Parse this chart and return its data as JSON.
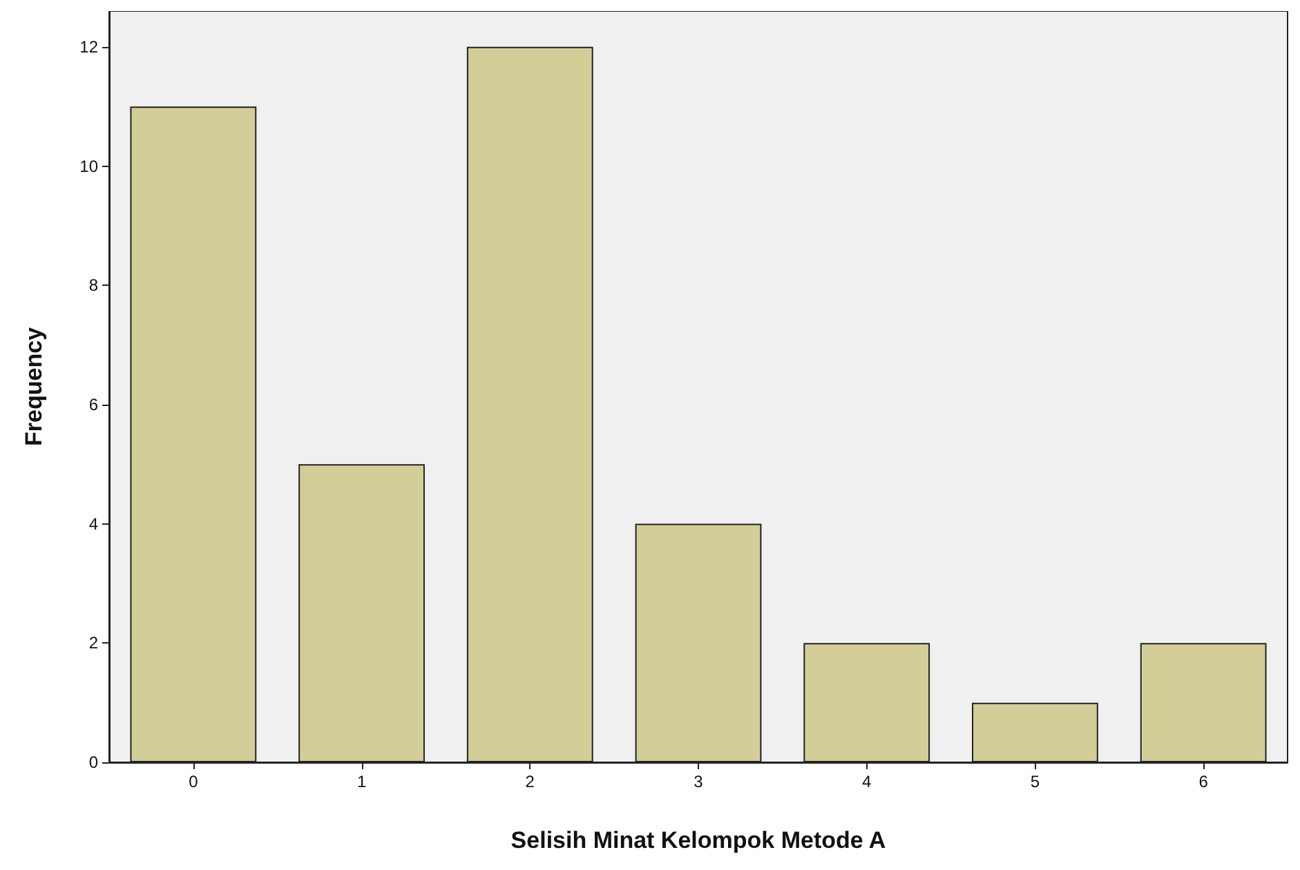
{
  "chart_data": {
    "type": "bar",
    "xlabel": "Selisih Minat Kelompok Metode A",
    "ylabel": "Frequency",
    "categories": [
      "0",
      "1",
      "2",
      "3",
      "4",
      "5",
      "6"
    ],
    "values": [
      11,
      5,
      12,
      4,
      2,
      1,
      2
    ],
    "color": "#d3ce98",
    "ylim": [
      0,
      12.6
    ],
    "yticks": [
      0,
      2,
      4,
      6,
      8,
      10,
      12
    ],
    "grid": false
  }
}
